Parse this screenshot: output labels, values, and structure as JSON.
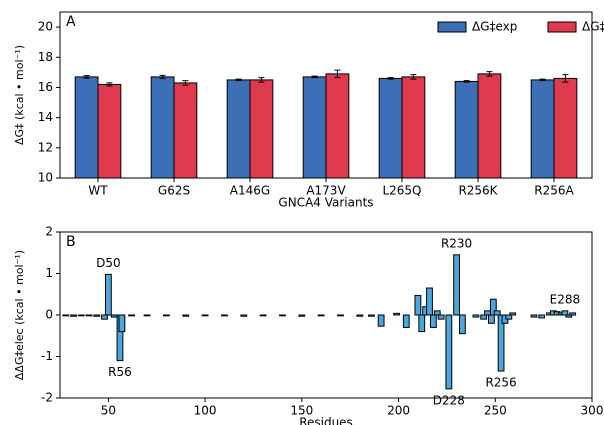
{
  "chart_data": [
    {
      "type": "bar",
      "panel_label": "A",
      "xlabel": "GNCA4 Variants",
      "ylabel": "ΔG‡ (kcal • mol⁻¹)",
      "categories": [
        "WT",
        "G62S",
        "A146G",
        "A173V",
        "L265Q",
        "R256K",
        "R256A"
      ],
      "series": [
        {
          "name": "ΔG‡exp",
          "color": "#3d6fb6",
          "values": [
            16.7,
            16.7,
            16.5,
            16.7,
            16.6,
            16.4,
            16.5
          ],
          "errors": [
            0.08,
            0.1,
            0.05,
            0.05,
            0.05,
            0.05,
            0.05
          ]
        },
        {
          "name": "ΔG‡calc",
          "color": "#e03a4f",
          "values": [
            16.2,
            16.3,
            16.5,
            16.9,
            16.7,
            16.9,
            16.6
          ],
          "errors": [
            0.1,
            0.15,
            0.15,
            0.25,
            0.15,
            0.15,
            0.25
          ]
        }
      ],
      "ylim": [
        10,
        21
      ],
      "yticks": [
        10,
        12,
        14,
        16,
        18,
        20
      ],
      "legend": "upper right",
      "grid": false
    },
    {
      "type": "histbar",
      "panel_label": "B",
      "xlabel": "Residues",
      "ylabel": "ΔΔG‡elec (kcal • mol⁻¹)",
      "color": "#4aa6dc",
      "x": [
        28,
        32,
        36,
        40,
        44,
        48,
        50,
        53,
        56,
        57,
        62,
        70,
        80,
        90,
        100,
        110,
        120,
        130,
        140,
        150,
        160,
        170,
        180,
        186,
        191,
        199,
        204,
        210,
        212,
        214,
        216,
        218,
        220,
        222,
        226,
        230,
        233,
        240,
        244,
        246,
        248,
        249,
        251,
        253,
        255,
        257,
        259,
        270,
        274,
        278,
        280,
        282,
        284,
        286,
        288,
        290
      ],
      "values": [
        -0.02,
        -0.03,
        -0.02,
        -0.02,
        -0.03,
        -0.1,
        0.98,
        -0.05,
        -1.1,
        -0.4,
        -0.02,
        -0.02,
        -0.02,
        -0.03,
        -0.02,
        -0.02,
        -0.03,
        -0.02,
        -0.02,
        -0.03,
        -0.02,
        -0.02,
        -0.03,
        -0.03,
        -0.27,
        0.04,
        -0.3,
        0.47,
        -0.4,
        0.2,
        0.65,
        -0.3,
        0.1,
        -0.1,
        -1.78,
        1.45,
        -0.45,
        -0.05,
        -0.1,
        0.1,
        -0.2,
        0.38,
        0.1,
        -1.35,
        -0.2,
        -0.1,
        0.05,
        -0.05,
        -0.07,
        0.05,
        0.1,
        0.08,
        0.05,
        0.1,
        -0.05,
        0.05
      ],
      "bar_labels": [
        null,
        null,
        null,
        null,
        null,
        null,
        "D50",
        null,
        "R56",
        null,
        null,
        null,
        null,
        null,
        null,
        null,
        null,
        null,
        null,
        null,
        null,
        null,
        null,
        null,
        null,
        null,
        null,
        null,
        null,
        null,
        null,
        null,
        null,
        null,
        "D228",
        "R230",
        null,
        null,
        null,
        null,
        null,
        null,
        null,
        "R256",
        null,
        null,
        null,
        null,
        null,
        null,
        null,
        null,
        null,
        "E288",
        null,
        null
      ],
      "xlim": [
        25,
        300
      ],
      "xticks": [
        50,
        100,
        150,
        200,
        250,
        300
      ],
      "ylim": [
        -2,
        2
      ],
      "yticks": [
        -2,
        -1,
        0,
        1,
        2
      ],
      "grid": false
    }
  ]
}
